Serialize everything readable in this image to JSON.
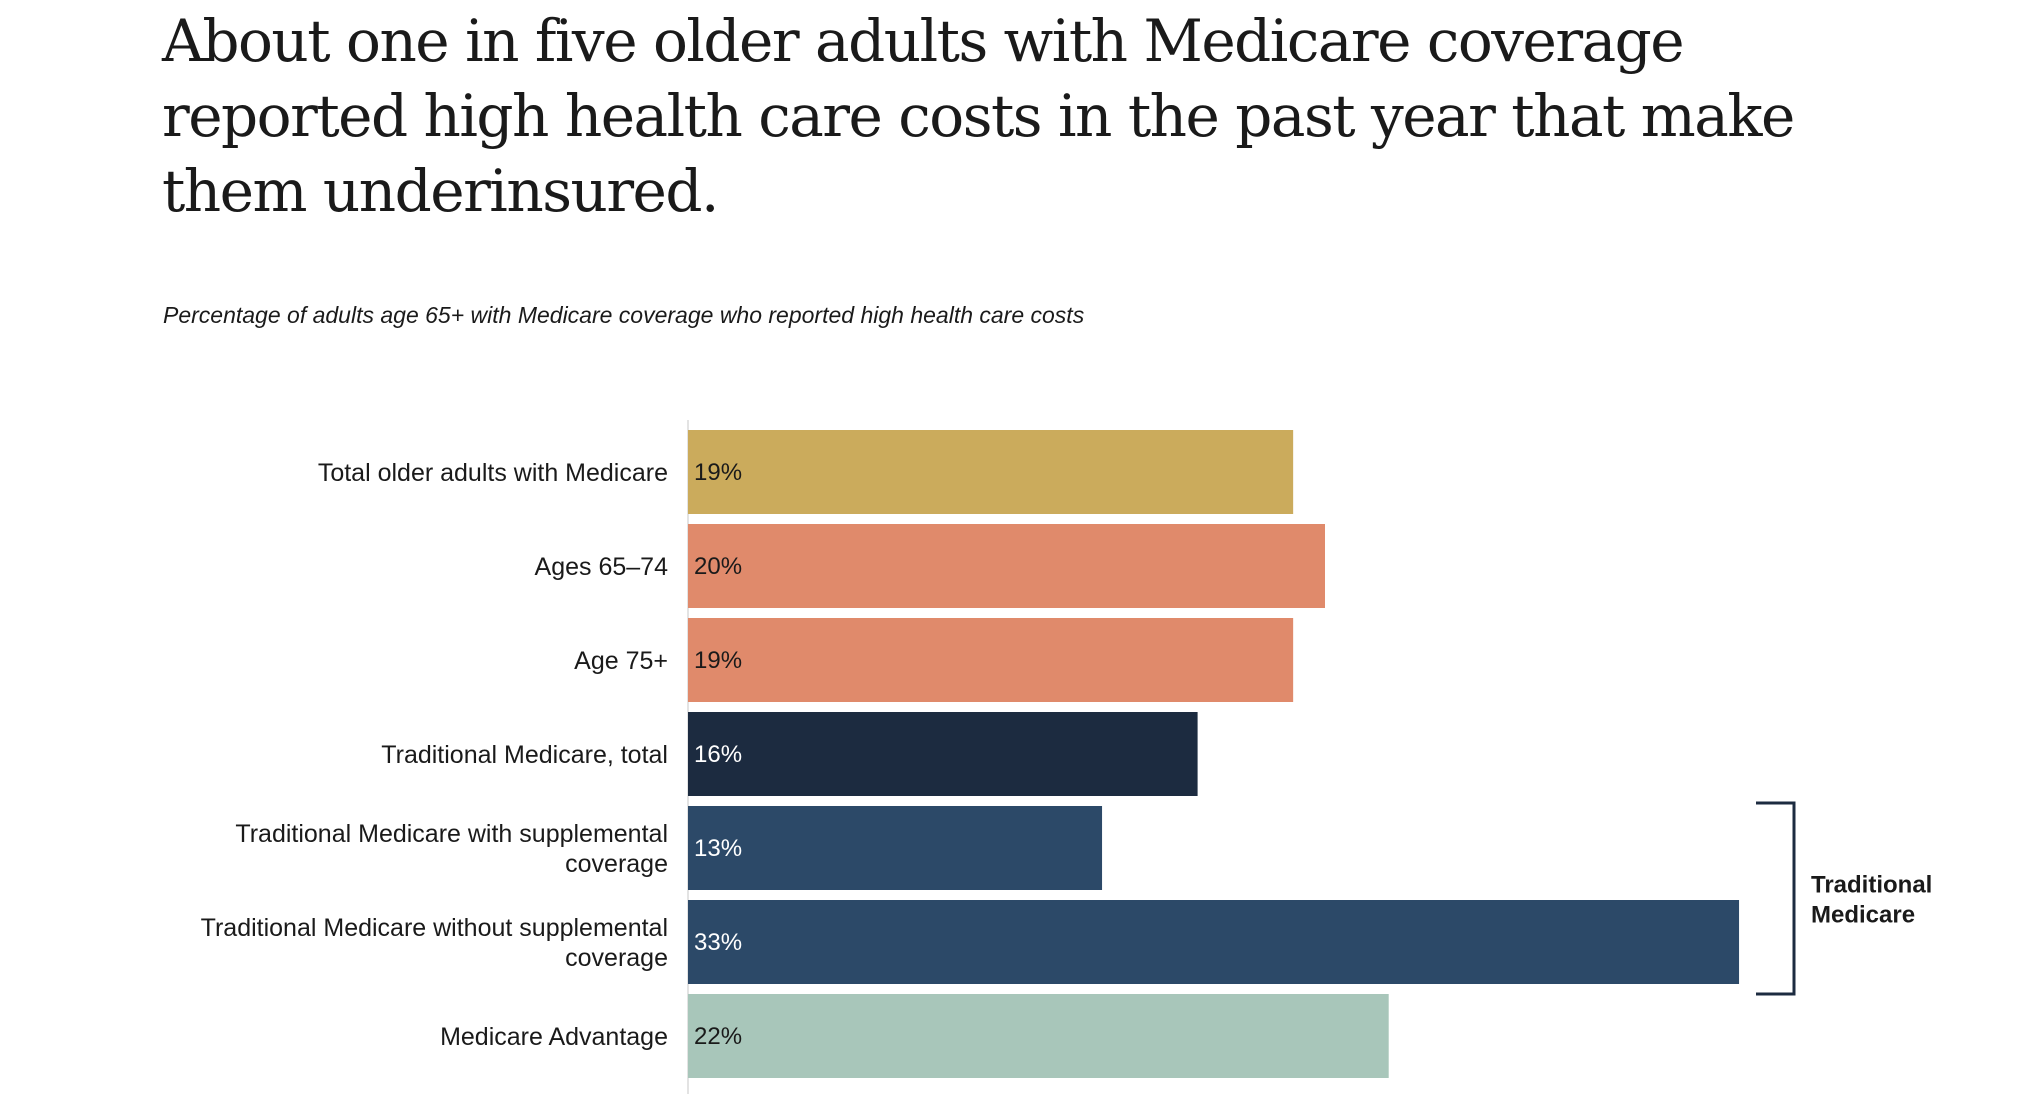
{
  "chart_data": {
    "type": "bar",
    "orientation": "horizontal",
    "title": "About one in five older adults with Medicare coverage reported high health care costs in the past year that make them underinsured.",
    "subtitle": "Percentage of adults age 65+ with Medicare coverage who reported high health care costs",
    "categories": [
      [
        "Total older adults with Medicare"
      ],
      [
        "Ages 65–74"
      ],
      [
        "Age 75+"
      ],
      [
        "Traditional Medicare, total"
      ],
      [
        "Traditional Medicare with supplemental",
        "coverage"
      ],
      [
        "Traditional Medicare without supplemental",
        "coverage"
      ],
      [
        "Medicare Advantage"
      ]
    ],
    "values": [
      19,
      20,
      19,
      16,
      13,
      33,
      22
    ],
    "value_labels": [
      "19%",
      "20%",
      "19%",
      "16%",
      "13%",
      "33%",
      "22%"
    ],
    "colors": [
      "#cbab5c",
      "#e08a6b",
      "#e08a6b",
      "#1c2b40",
      "#2c4968",
      "#2c4968",
      "#a8c6ba"
    ],
    "label_colors": [
      "#1a1a1a",
      "#1a1a1a",
      "#1a1a1a",
      "#ffffff",
      "#ffffff",
      "#ffffff",
      "#1a1a1a"
    ],
    "xlim": [
      0,
      34
    ],
    "grid": false,
    "legend": "none",
    "annotations": [
      {
        "type": "bracket",
        "text": [
          "Traditional",
          "Medicare"
        ],
        "rows": [
          4,
          5
        ]
      }
    ]
  }
}
